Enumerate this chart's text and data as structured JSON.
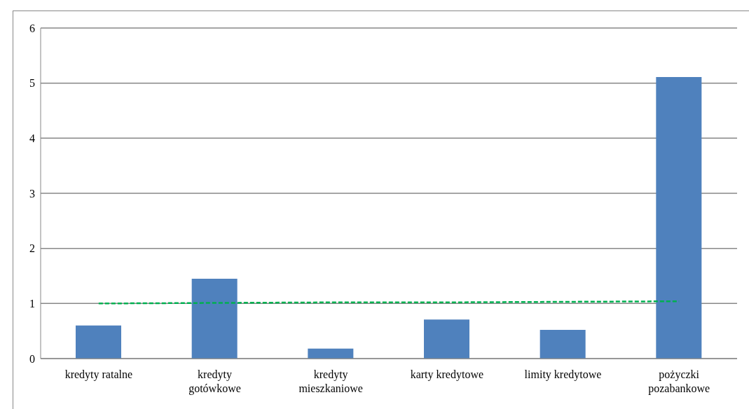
{
  "chart_data": {
    "type": "bar",
    "categories": [
      "kredyty ratalne",
      "kredyty gotówkowe",
      "kredyty mieszkaniowe",
      "karty kredytowe",
      "limity kredytowe",
      "pożyczki pozabankowe"
    ],
    "series": [
      {
        "color": "#4f81bd",
        "values": [
          0.6,
          1.45,
          0.18,
          0.71,
          0.52,
          5.11
        ]
      },
      {
        "type": "line",
        "color": "#00b050",
        "line_style": "dashed",
        "marker": "none",
        "values": [
          1.0,
          1.01,
          1.02,
          1.02,
          1.03,
          1.04
        ]
      }
    ],
    "ylim": [
      0,
      6
    ],
    "yticks": [
      0,
      1,
      2,
      3,
      4,
      5,
      6
    ],
    "grid": "y"
  }
}
